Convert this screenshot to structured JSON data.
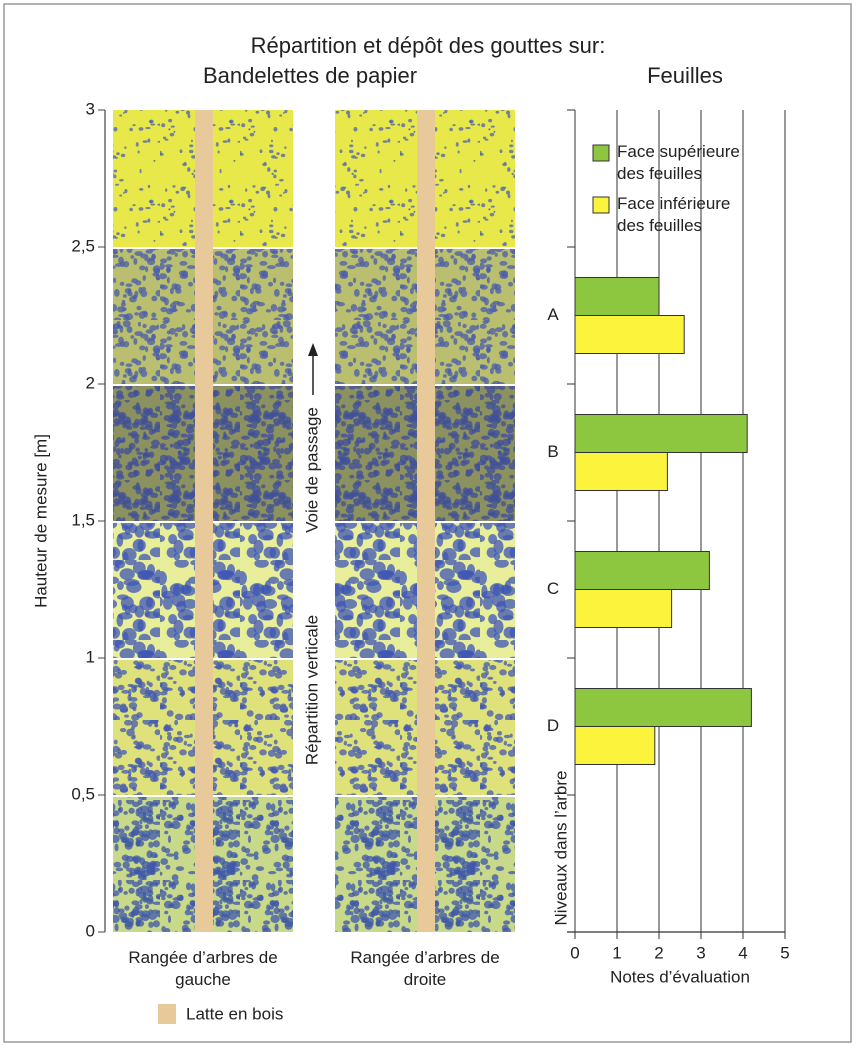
{
  "title": "Répartition et dépôt des gouttes sur:",
  "chart_data": [
    {
      "type": "strips",
      "title": "Bandelettes de papier",
      "y_label": "Hauteur de mesure [m]",
      "ylim": [
        0,
        3
      ],
      "yticks": [
        0,
        {
          "value": 0.5,
          "label": "0,5"
        },
        1,
        {
          "value": 1.5,
          "label": "1,5"
        },
        2,
        {
          "value": 2.5,
          "label": "2,5"
        },
        3
      ],
      "columns": [
        "Rangée d’arbres de gauche",
        "Rangée d’arbres de droite"
      ],
      "annotations": [
        "Répartition verticale",
        "Voie de passage"
      ],
      "legend": "Latte en bois",
      "legend_color": "#e8c99a"
    },
    {
      "type": "bar",
      "orientation": "horizontal",
      "title": "Feuilles",
      "categories": [
        "A",
        "B",
        "C",
        "D"
      ],
      "series": [
        {
          "name": "Face supérieure des feuilles",
          "color": "#8dc63f",
          "values": [
            2.0,
            4.1,
            3.2,
            4.2
          ]
        },
        {
          "name": "Face inférieure des feuilles",
          "color": "#fbf33c",
          "values": [
            2.6,
            2.2,
            2.3,
            1.9
          ]
        }
      ],
      "xlim": [
        0,
        5
      ],
      "xticks": [
        0,
        1,
        2,
        3,
        4,
        5
      ],
      "x_label": "Notes d’évaluation",
      "y_label": "Niveaux dans l’arbre",
      "grid": true
    }
  ]
}
